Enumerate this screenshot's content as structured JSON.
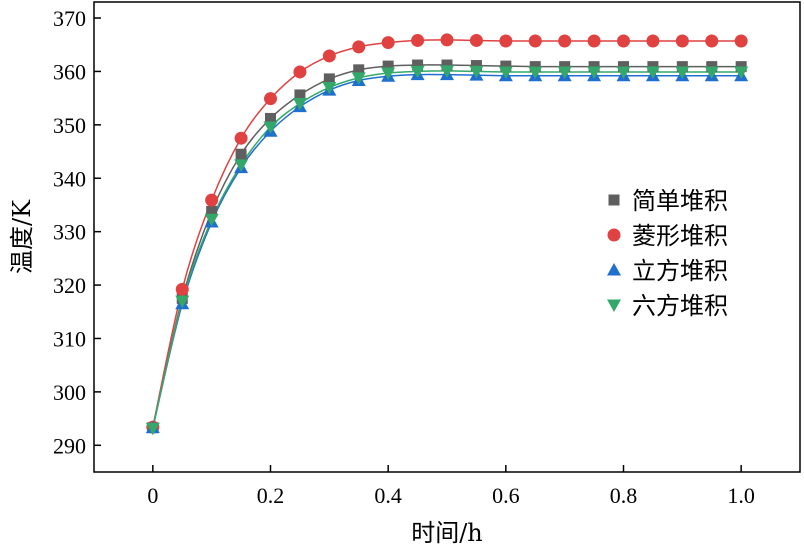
{
  "chart_data": {
    "type": "line",
    "title": "",
    "xlabel": "时间/h",
    "ylabel": "温度/K",
    "xlim": [
      -0.1,
      1.1
    ],
    "ylim": [
      285,
      373
    ],
    "xticks": [
      0,
      0.2,
      0.4,
      0.6,
      0.8,
      1.0
    ],
    "xtick_labels": [
      "0",
      "0.2",
      "0.4",
      "0.6",
      "0.8",
      "1.0"
    ],
    "yticks": [
      290,
      300,
      310,
      320,
      330,
      340,
      350,
      360,
      370
    ],
    "ytick_labels": [
      "290",
      "300",
      "310",
      "320",
      "330",
      "340",
      "350",
      "360",
      "370"
    ],
    "grid": false,
    "legend_position": "right",
    "x": [
      0,
      0.05,
      0.1,
      0.15,
      0.2,
      0.25,
      0.3,
      0.35,
      0.4,
      0.45,
      0.5,
      0.55,
      0.6,
      0.65,
      0.7,
      0.75,
      0.8,
      0.85,
      0.9,
      0.95,
      1.0
    ],
    "series": [
      {
        "name": "简单堆积",
        "marker": "square",
        "color": "#5f5f5f",
        "values": [
          293.3,
          317.5,
          333.8,
          344.5,
          351.2,
          355.6,
          358.6,
          360.3,
          361.0,
          361.2,
          361.2,
          361.1,
          361.0,
          360.9,
          360.9,
          360.9,
          360.9,
          360.9,
          360.9,
          360.9,
          360.9
        ]
      },
      {
        "name": "菱形堆积",
        "marker": "circle",
        "color": "#e04141",
        "values": [
          293.4,
          319.2,
          335.9,
          347.5,
          354.9,
          359.9,
          362.9,
          364.6,
          365.4,
          365.8,
          365.9,
          365.8,
          365.7,
          365.7,
          365.7,
          365.7,
          365.7,
          365.7,
          365.7,
          365.7,
          365.7
        ]
      },
      {
        "name": "立方堆积",
        "marker": "triangle-up",
        "color": "#1f6fd1",
        "values": [
          293.3,
          316.5,
          331.8,
          342.0,
          348.8,
          353.4,
          356.5,
          358.3,
          359.1,
          359.4,
          359.4,
          359.3,
          359.2,
          359.2,
          359.2,
          359.2,
          359.2,
          359.2,
          359.2,
          359.2,
          359.2
        ]
      },
      {
        "name": "六方堆积",
        "marker": "triangle-down",
        "color": "#34a86a",
        "values": [
          293.2,
          317.0,
          332.3,
          342.5,
          349.6,
          354.0,
          357.0,
          358.8,
          359.7,
          360.0,
          360.1,
          360.0,
          359.9,
          359.9,
          359.9,
          359.9,
          359.9,
          359.9,
          359.9,
          359.9,
          359.9
        ]
      }
    ]
  }
}
